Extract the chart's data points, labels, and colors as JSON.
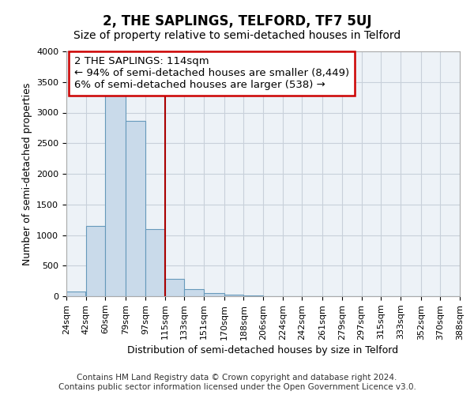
{
  "title": "2, THE SAPLINGS, TELFORD, TF7 5UJ",
  "subtitle": "Size of property relative to semi-detached houses in Telford",
  "xlabel": "Distribution of semi-detached houses by size in Telford",
  "ylabel": "Number of semi-detached properties",
  "footer_line1": "Contains HM Land Registry data © Crown copyright and database right 2024.",
  "footer_line2": "Contains public sector information licensed under the Open Government Licence v3.0.",
  "annotation_title": "2 THE SAPLINGS: 114sqm",
  "annotation_line1": "← 94% of semi-detached houses are smaller (8,449)",
  "annotation_line2": "6% of semi-detached houses are larger (538) →",
  "bar_color": "#c9daea",
  "bar_edge_color": "#6699bb",
  "bar_left_edges": [
    24,
    42,
    60,
    79,
    97,
    115,
    133,
    151,
    170,
    188,
    206,
    224,
    242,
    261,
    279,
    297,
    315,
    333,
    352,
    370
  ],
  "bar_widths": [
    18,
    18,
    19,
    18,
    18,
    18,
    18,
    19,
    18,
    18,
    18,
    18,
    19,
    18,
    18,
    18,
    18,
    19,
    18,
    18
  ],
  "bar_heights": [
    80,
    1150,
    3300,
    2870,
    1100,
    280,
    115,
    50,
    30,
    10,
    5,
    2,
    2,
    2,
    2,
    2,
    2,
    2,
    1,
    1
  ],
  "xlim": [
    24,
    388
  ],
  "ylim": [
    0,
    4000
  ],
  "yticks": [
    0,
    500,
    1000,
    1500,
    2000,
    2500,
    3000,
    3500,
    4000
  ],
  "xtick_labels": [
    "24sqm",
    "42sqm",
    "60sqm",
    "79sqm",
    "97sqm",
    "115sqm",
    "133sqm",
    "151sqm",
    "170sqm",
    "188sqm",
    "206sqm",
    "224sqm",
    "242sqm",
    "261sqm",
    "279sqm",
    "297sqm",
    "315sqm",
    "333sqm",
    "352sqm",
    "370sqm",
    "388sqm"
  ],
  "xtick_positions": [
    24,
    42,
    60,
    79,
    97,
    115,
    133,
    151,
    170,
    188,
    206,
    224,
    242,
    261,
    279,
    297,
    315,
    333,
    352,
    370,
    388
  ],
  "vline_x": 115,
  "vline_color": "#aa0000",
  "annotation_box_color": "#cc0000",
  "grid_color": "#c8d0da",
  "plot_bg_color": "#edf2f7",
  "background_color": "#ffffff",
  "title_fontsize": 12,
  "subtitle_fontsize": 10,
  "annotation_fontsize": 9.5,
  "axis_label_fontsize": 9,
  "tick_fontsize": 8,
  "footer_fontsize": 7.5
}
